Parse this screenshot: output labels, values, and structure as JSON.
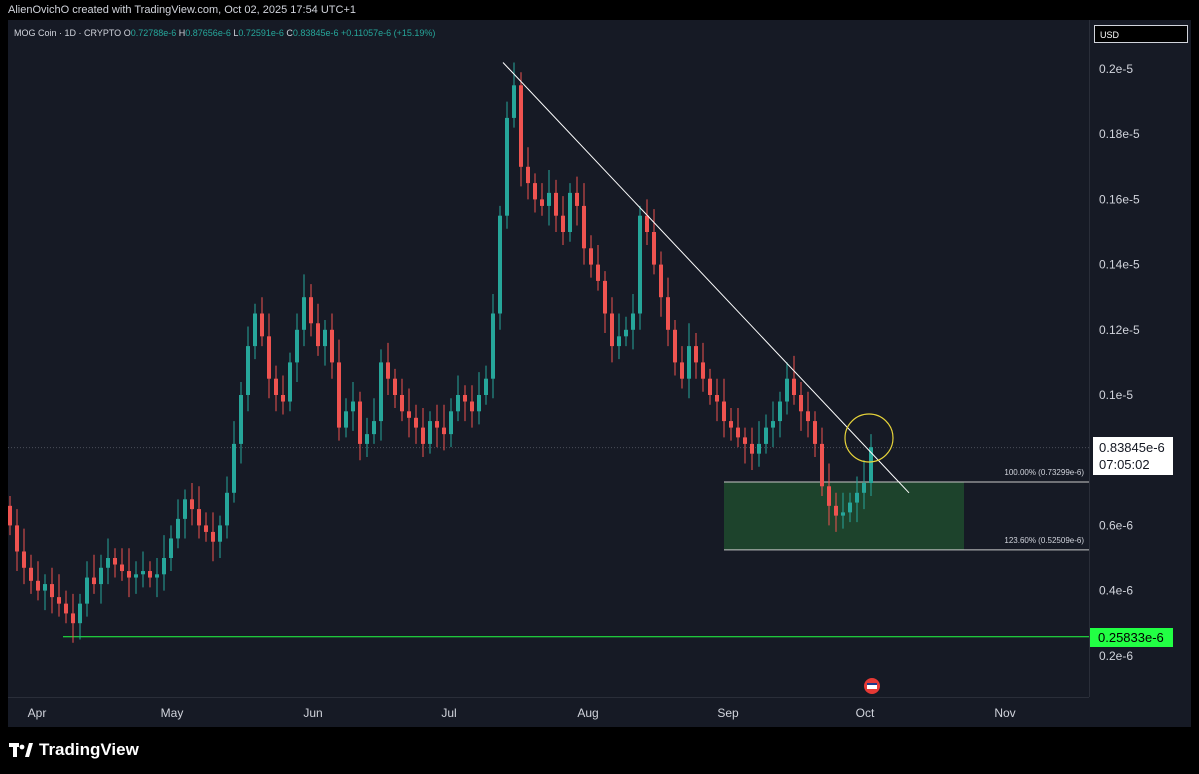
{
  "header": {
    "attribution": "AlienOvichO created with TradingView.com, Oct 02, 2025 17:54 UTC+1"
  },
  "legend": {
    "symbol": "MOG Coin · 1D · CRYPTO",
    "open_label": "O",
    "open": "0.72788e-6",
    "high_label": "H",
    "high": "0.87656e-6",
    "low_label": "L",
    "low": "0.72591e-6",
    "close_label": "C",
    "close": "0.83845e-6",
    "change": "+0.11057e-6 (+15.19%)"
  },
  "currency": "USD",
  "price_tag": {
    "price": "0.83845e-6",
    "countdown": "07:05:02"
  },
  "low_tag": "0.25833e-6",
  "brand": "TradingView",
  "colors": {
    "up": "#26a69a",
    "down": "#ef5350",
    "background": "#161a25",
    "zone": "#1f4b2e",
    "low_line": "#22ff44"
  },
  "chart_data": {
    "type": "candlestick",
    "y_unit": "USD",
    "y_ticks": [
      "0.2e-5",
      "0.18e-5",
      "0.16e-5",
      "0.14e-5",
      "0.12e-5",
      "0.1e-5",
      "0.6e-6",
      "0.4e-6",
      "0.2e-6"
    ],
    "y_tick_values": [
      2e-06,
      1.8e-06,
      1.6e-06,
      1.4e-06,
      1.2e-06,
      1e-06,
      6e-07,
      4e-07,
      2e-07
    ],
    "x_ticks": [
      "Apr",
      "May",
      "Jun",
      "Jul",
      "Aug",
      "Sep",
      "Oct",
      "Nov"
    ],
    "ylim": [
      0.0,
      2.2e-06
    ],
    "fib_levels": [
      {
        "label": "100.00% (0.73299e-6)",
        "value": 7.3299e-07
      },
      {
        "label": "123.60% (0.52509e-6)",
        "value": 5.2509e-07
      }
    ],
    "support_level": 2.5833e-07,
    "last_price": 8.3845e-07,
    "trendline": {
      "from_price": 2.02e-06,
      "to_price": 7e-07
    },
    "closes": [
      0.6,
      0.52,
      0.47,
      0.43,
      0.4,
      0.42,
      0.38,
      0.36,
      0.33,
      0.3,
      0.36,
      0.44,
      0.42,
      0.47,
      0.5,
      0.48,
      0.46,
      0.44,
      0.45,
      0.46,
      0.44,
      0.45,
      0.5,
      0.56,
      0.62,
      0.68,
      0.65,
      0.6,
      0.58,
      0.55,
      0.6,
      0.7,
      0.85,
      1.0,
      1.15,
      1.25,
      1.18,
      1.05,
      1.0,
      0.98,
      1.1,
      1.2,
      1.3,
      1.22,
      1.15,
      1.2,
      1.1,
      0.9,
      0.95,
      0.98,
      0.85,
      0.88,
      0.92,
      1.1,
      1.05,
      1.0,
      0.95,
      0.93,
      0.9,
      0.85,
      0.92,
      0.9,
      0.88,
      0.95,
      1.0,
      0.98,
      0.95,
      1.0,
      1.05,
      1.25,
      1.55,
      1.85,
      1.95,
      1.7,
      1.65,
      1.6,
      1.58,
      1.62,
      1.55,
      1.5,
      1.62,
      1.58,
      1.45,
      1.4,
      1.35,
      1.25,
      1.15,
      1.18,
      1.2,
      1.25,
      1.55,
      1.5,
      1.4,
      1.3,
      1.2,
      1.1,
      1.05,
      1.15,
      1.1,
      1.05,
      1.0,
      0.98,
      0.92,
      0.9,
      0.87,
      0.85,
      0.82,
      0.85,
      0.9,
      0.92,
      0.98,
      1.05,
      1.0,
      0.95,
      0.92,
      0.85,
      0.72,
      0.66,
      0.63,
      0.64,
      0.67,
      0.7,
      0.73,
      0.84
    ]
  }
}
